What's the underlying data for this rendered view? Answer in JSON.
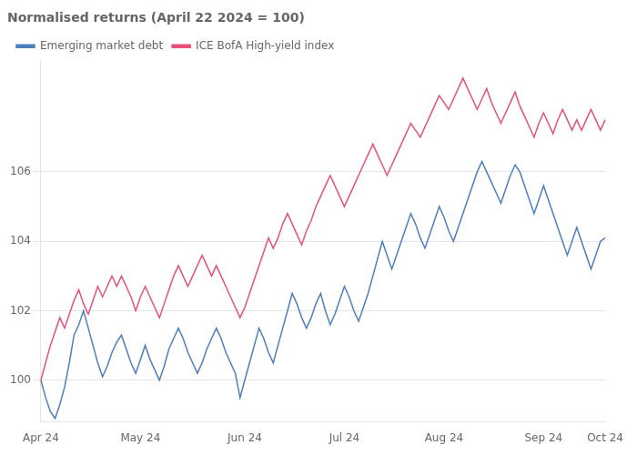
{
  "chart_data": {
    "type": "line",
    "title": "Normalised returns (April 22 2024 = 100)",
    "categories": [
      "Apr 24",
      null,
      null,
      null,
      null,
      null,
      null,
      null,
      null,
      null,
      null,
      null,
      null,
      null,
      null,
      null,
      null,
      null,
      null,
      null,
      null,
      "May 24",
      null,
      null,
      null,
      null,
      null,
      null,
      null,
      null,
      null,
      null,
      null,
      null,
      null,
      null,
      null,
      null,
      null,
      null,
      null,
      null,
      null,
      "Jun 24",
      null,
      null,
      null,
      null,
      null,
      null,
      null,
      null,
      null,
      null,
      null,
      null,
      null,
      null,
      null,
      null,
      null,
      null,
      null,
      null,
      "Jul 24",
      null,
      null,
      null,
      null,
      null,
      null,
      null,
      null,
      null,
      null,
      null,
      null,
      null,
      null,
      null,
      null,
      null,
      null,
      null,
      null,
      "Aug 24",
      null,
      null,
      null,
      null,
      null,
      null,
      null,
      null,
      null,
      null,
      null,
      null,
      null,
      null,
      null,
      null,
      null,
      null,
      null,
      null,
      "Sep 24",
      null,
      null,
      null,
      null,
      null,
      null,
      null,
      null,
      null,
      null,
      null,
      null,
      "Oct 24"
    ],
    "series": [
      {
        "name": "Emerging market debt",
        "color": "#4C7EBE",
        "values": [
          100.0,
          99.5,
          99.1,
          98.9,
          99.3,
          99.8,
          100.5,
          101.3,
          101.6,
          102.0,
          101.5,
          101.0,
          100.5,
          100.1,
          100.4,
          100.8,
          101.1,
          101.3,
          100.9,
          100.5,
          100.2,
          100.6,
          101.0,
          100.6,
          100.3,
          100.0,
          100.4,
          100.9,
          101.2,
          101.5,
          101.2,
          100.8,
          100.5,
          100.2,
          100.5,
          100.9,
          101.2,
          101.5,
          101.2,
          100.8,
          100.5,
          100.2,
          99.5,
          100.0,
          100.5,
          101.0,
          101.5,
          101.2,
          100.8,
          100.5,
          101.0,
          101.5,
          102.0,
          102.5,
          102.2,
          101.8,
          101.5,
          101.8,
          102.2,
          102.5,
          102.0,
          101.6,
          101.9,
          102.3,
          102.7,
          102.4,
          102.0,
          101.7,
          102.1,
          102.5,
          103.0,
          103.5,
          104.0,
          103.6,
          103.2,
          103.6,
          104.0,
          104.4,
          104.8,
          104.5,
          104.1,
          103.8,
          104.2,
          104.6,
          105.0,
          104.7,
          104.3,
          104.0,
          104.4,
          104.8,
          105.2,
          105.6,
          106.0,
          106.3,
          106.0,
          105.7,
          105.4,
          105.1,
          105.5,
          105.9,
          106.2,
          106.0,
          105.6,
          105.2,
          104.8,
          105.2,
          105.6,
          105.2,
          104.8,
          104.4,
          104.0,
          103.6,
          104.0,
          104.4,
          104.0,
          103.6,
          103.2,
          103.6,
          104.0,
          104.1
        ]
      },
      {
        "name": "ICE BofA High-yield index",
        "color": "#E8507A",
        "values": [
          100.0,
          100.5,
          101.0,
          101.4,
          101.8,
          101.5,
          101.9,
          102.3,
          102.6,
          102.2,
          101.9,
          102.3,
          102.7,
          102.4,
          102.7,
          103.0,
          102.7,
          103.0,
          102.7,
          102.4,
          102.0,
          102.4,
          102.7,
          102.4,
          102.1,
          101.8,
          102.2,
          102.6,
          103.0,
          103.3,
          103.0,
          102.7,
          103.0,
          103.3,
          103.6,
          103.3,
          103.0,
          103.3,
          103.0,
          102.7,
          102.4,
          102.1,
          101.8,
          102.1,
          102.5,
          102.9,
          103.3,
          103.7,
          104.1,
          103.8,
          104.1,
          104.5,
          104.8,
          104.5,
          104.2,
          103.9,
          104.3,
          104.6,
          105.0,
          105.3,
          105.6,
          105.9,
          105.6,
          105.3,
          105.0,
          105.3,
          105.6,
          105.9,
          106.2,
          106.5,
          106.8,
          106.5,
          106.2,
          105.9,
          106.2,
          106.5,
          106.8,
          107.1,
          107.4,
          107.2,
          107.0,
          107.3,
          107.6,
          107.9,
          108.2,
          108.0,
          107.8,
          108.1,
          108.4,
          108.7,
          108.4,
          108.1,
          107.8,
          108.1,
          108.4,
          108.0,
          107.7,
          107.4,
          107.7,
          108.0,
          108.3,
          107.9,
          107.6,
          107.3,
          107.0,
          107.4,
          107.7,
          107.4,
          107.1,
          107.5,
          107.8,
          107.5,
          107.2,
          107.5,
          107.2,
          107.5,
          107.8,
          107.5,
          107.2,
          107.5
        ]
      }
    ],
    "ylim": [
      98.8,
      109.2
    ],
    "yticks": [
      100,
      102,
      104,
      106
    ],
    "grid": "y",
    "legend": "upper left"
  }
}
